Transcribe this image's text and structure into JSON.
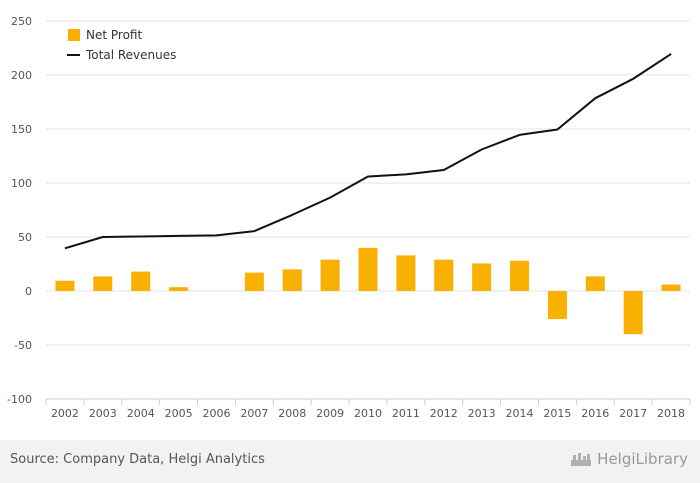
{
  "chart_data": {
    "type": "bar",
    "categories": [
      "2002",
      "2003",
      "2004",
      "2005",
      "2006",
      "2007",
      "2008",
      "2009",
      "2010",
      "2011",
      "2012",
      "2013",
      "2014",
      "2015",
      "2016",
      "2017",
      "2018"
    ],
    "series": [
      {
        "name": "Net Profit",
        "type": "bar",
        "color": "#f9b000",
        "values": [
          9.5,
          13.5,
          18,
          3.5,
          0,
          17,
          20,
          29,
          40,
          33,
          29,
          25.5,
          28,
          -26,
          13.5,
          -40,
          6
        ]
      },
      {
        "name": "Total Revenues",
        "type": "line",
        "color": "#111111",
        "values": [
          39.5,
          50,
          50.5,
          51,
          51.5,
          55.5,
          70.5,
          86.5,
          106,
          108,
          112,
          131,
          144.5,
          149.5,
          178.5,
          196.5,
          219.5
        ]
      }
    ],
    "yticks": [
      250,
      200,
      150,
      100,
      50,
      0,
      -50,
      -100
    ],
    "ylim": [
      -100,
      250
    ],
    "grid": true,
    "legend": "top-left"
  },
  "footer": {
    "source": "Source: Company Data, Helgi Analytics",
    "brand": "HelgiLibrary",
    "brand_icon": "helgi-logo-icon"
  }
}
